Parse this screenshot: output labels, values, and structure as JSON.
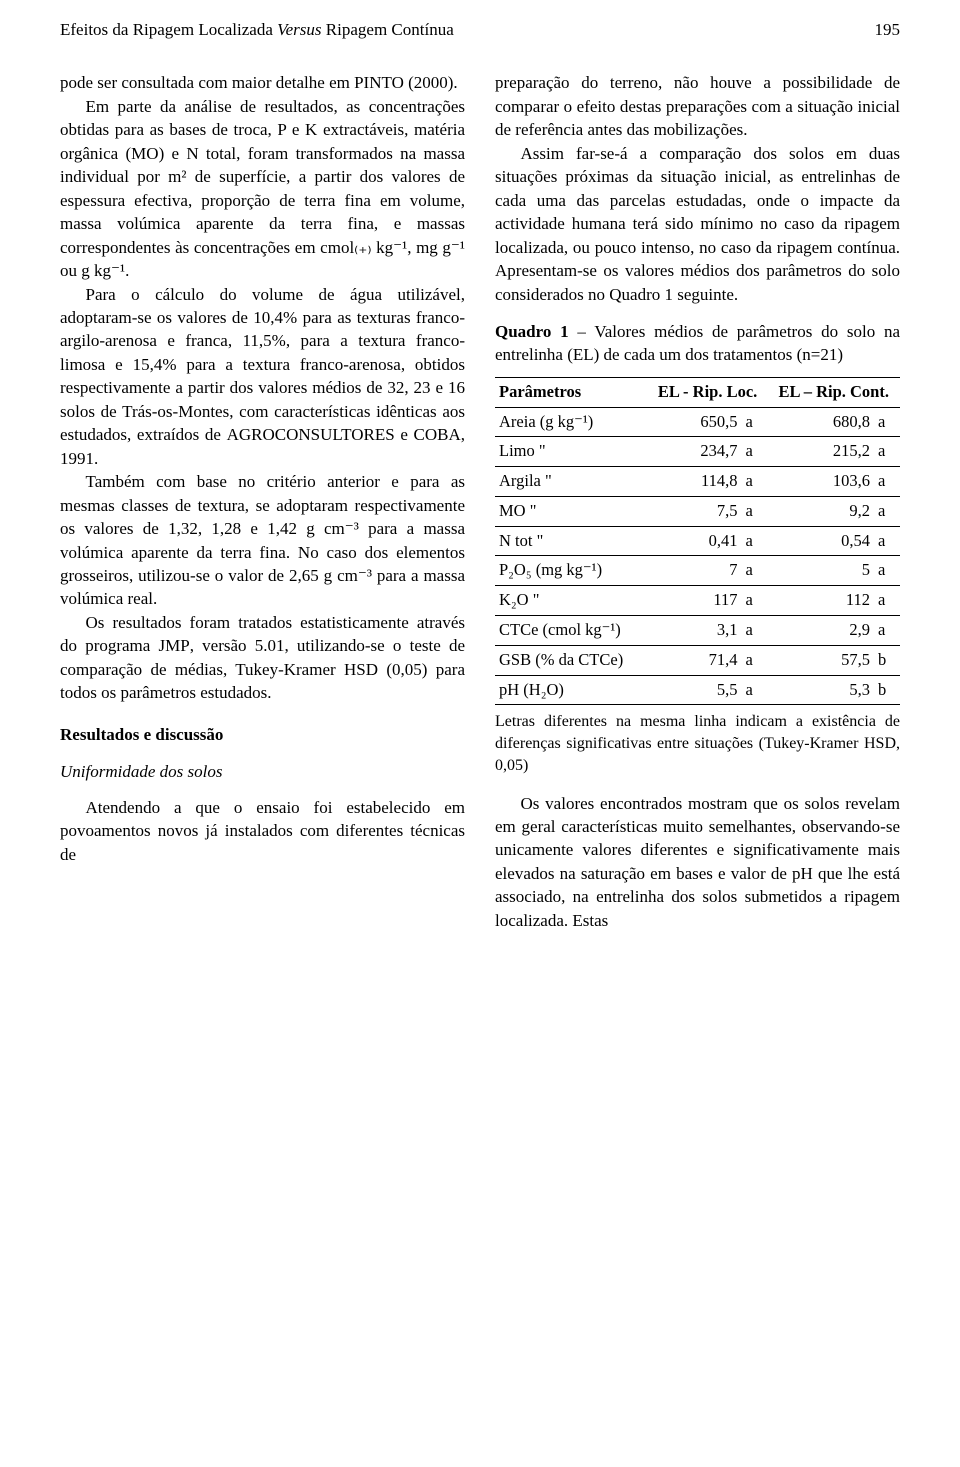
{
  "running_head": {
    "title_plain1": "Efeitos da Ripagem Localizada ",
    "title_ital": "Versus",
    "title_plain2": " Ripagem Contínua",
    "page_no": "195"
  },
  "col_left": {
    "p1a": "pode ser consultada com maior detalhe em ",
    "p1_sc": "PINTO",
    "p1b": " (2000).",
    "p2a": "Em parte da análise de resultados, as concentrações obtidas para as bases de troca, P e K extractáveis, matéria orgânica (",
    "p2_sc1": "MO",
    "p2b": ") e N total, foram transformados na massa individual por m² de superfície, a partir dos valores de espessura efectiva, proporção de terra fina em volume, massa volúmica aparente da terra fina, e massas correspondentes às concentrações em cmol₍₊₎ kg⁻¹, mg g⁻¹ ou g kg⁻¹.",
    "p3a": "Para o cálculo do volume de água utilizável, adoptaram-se os valores de 10,4% para as texturas franco-argilo-arenosa e franca, 11,5%, para a textura franco-limosa e 15,4% para a textura franco-arenosa, obtidos respectivamente a partir dos valores médios de 32, 23 e 16 solos de Trás-os-Montes, com características idênticas aos estudados, extraídos de ",
    "p3_sc1": "AGROCONSULTORES",
    "p3b": " e ",
    "p3_sc2": "COBA",
    "p3c": ", 1991.",
    "p4": "Também com base no critério anterior e para as mesmas classes de textura, se adoptaram respectivamente os valores de 1,32, 1,28 e 1,42 g cm⁻³ para a massa volúmica aparente da terra fina. No caso dos elementos grosseiros, utilizou-se o valor de 2,65 g cm⁻³ para a massa volúmica real.",
    "p5a": "Os resultados foram tratados estatisticamente através do programa ",
    "p5_sc1": "JMP",
    "p5b": ", versão 5.01, utilizando-se o teste de comparação de médias, Tukey-Kramer ",
    "p5_sc2": "HSD",
    "p5c": " (0,05) para todos os parâmetros estudados.",
    "sec_head": "Resultados e discussão",
    "sub_head": "Uniformidade dos solos",
    "p6": "Atendendo a que o ensaio foi estabelecido em povoamentos novos já instalados com diferentes técnicas de"
  },
  "col_right": {
    "p1": "preparação do terreno, não houve a possibilidade de comparar o efeito destas preparações com a situação inicial de referência antes das mobilizações.",
    "p2": "Assim far-se-á a comparação dos solos em duas situações próximas da situação inicial, as entrelinhas de cada uma das parcelas estudadas, onde o impacte da actividade humana terá sido mínimo no caso da ripagem localizada, ou pouco intenso, no caso da ripagem contínua. Apresentam-se os valores médios dos parâmetros do solo considerados no Quadro 1 seguinte.",
    "quadro_label": "Quadro 1",
    "quadro_caption": " – Valores médios de parâmetros do solo na entrelinha (EL) de cada um dos tratamentos (n=21)",
    "table": {
      "headers": {
        "c1": "Parâmetros",
        "c2": "EL - Rip. Loc.",
        "c3": "EL – Rip. Cont."
      },
      "rows": [
        {
          "param": "Areia (g kg⁻¹)",
          "v1": "650,5",
          "l1": "a",
          "v2": "680,8",
          "l2": "a"
        },
        {
          "param": "Limo      \"",
          "v1": "234,7",
          "l1": "a",
          "v2": "215,2",
          "l2": "a"
        },
        {
          "param": "Argila    \"",
          "v1": "114,8",
          "l1": "a",
          "v2": "103,6",
          "l2": "a"
        },
        {
          "param": "MO        \"",
          "v1": "7,5",
          "l1": "a",
          "v2": "9,2",
          "l2": "a"
        },
        {
          "param": "N tot     \"",
          "v1": "0,41",
          "l1": "a",
          "v2": "0,54",
          "l2": "a"
        },
        {
          "param": "P₂O₅  (mg kg⁻¹)",
          "v1": "7",
          "l1": "a",
          "v2": "5",
          "l2": "a"
        },
        {
          "param": "K₂O       \"",
          "v1": "117",
          "l1": "a",
          "v2": "112",
          "l2": "a"
        },
        {
          "param": "CTCe  (cmol kg⁻¹)",
          "v1": "3,1",
          "l1": "a",
          "v2": "2,9",
          "l2": "a"
        },
        {
          "param": "GSB (% da CTCe)",
          "v1": "71,4",
          "l1": "a",
          "v2": "57,5",
          "l2": "b"
        },
        {
          "param": "pH (H₂O)",
          "v1": "5,5",
          "l1": "a",
          "v2": "5,3",
          "l2": "b"
        }
      ]
    },
    "table_note": "Letras diferentes na mesma linha indicam a existência de diferenças significativas entre situações (Tukey-Kramer HSD, 0,05)",
    "p3": "Os valores encontrados mostram que os solos revelam em geral características muito semelhantes, observando-se unicamente valores diferentes e significativamente mais elevados na saturação em bases e valor de pH que lhe está associado, na entrelinha dos solos submetidos a ripagem localizada. Estas"
  }
}
